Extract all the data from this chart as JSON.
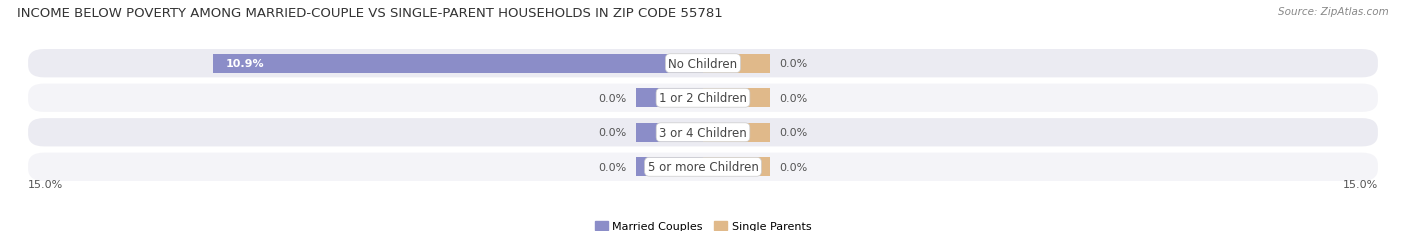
{
  "title": "INCOME BELOW POVERTY AMONG MARRIED-COUPLE VS SINGLE-PARENT HOUSEHOLDS IN ZIP CODE 55781",
  "source": "Source: ZipAtlas.com",
  "categories": [
    "No Children",
    "1 or 2 Children",
    "3 or 4 Children",
    "5 or more Children"
  ],
  "married_values": [
    10.9,
    0.0,
    0.0,
    0.0
  ],
  "single_values": [
    0.0,
    0.0,
    0.0,
    0.0
  ],
  "xlim": 15.0,
  "stub_size": 1.5,
  "married_color": "#8b8dc8",
  "single_color": "#e0b98a",
  "row_bg_color_odd": "#ebebf2",
  "row_bg_color_even": "#f4f4f8",
  "title_fontsize": 9.5,
  "label_fontsize": 8.0,
  "category_fontsize": 8.5,
  "source_fontsize": 7.5,
  "legend_married": "Married Couples",
  "legend_single": "Single Parents",
  "axis_label_left": "15.0%",
  "axis_label_right": "15.0%"
}
